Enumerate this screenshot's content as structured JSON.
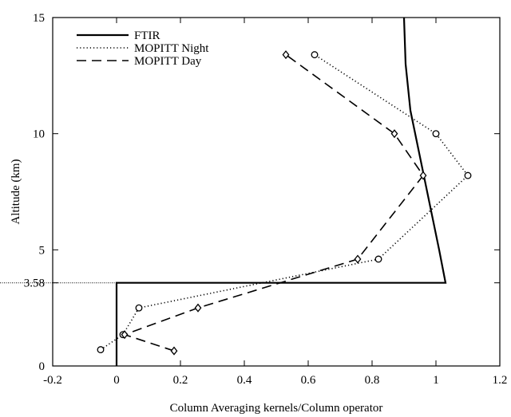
{
  "chart_data": {
    "type": "line",
    "xlabel": "Column Averaging kernels/Column operator",
    "ylabel": "Altitude (km)",
    "xlim": [
      -0.2,
      1.2
    ],
    "ylim": [
      0,
      15
    ],
    "x_ticks": [
      "-0.2",
      "0",
      "0.2",
      "0.4",
      "0.6",
      "0.8",
      "1",
      "1.2"
    ],
    "x_tick_values": [
      -0.2,
      0,
      0.2,
      0.4,
      0.6,
      0.8,
      1.0,
      1.2
    ],
    "y_ticks": [
      "0",
      "3.58",
      "5",
      "10",
      "15"
    ],
    "y_tick_values": [
      0,
      3.58,
      5,
      10,
      15
    ],
    "reference_line": {
      "y": 3.58
    },
    "legend_position": "top-left",
    "series": [
      {
        "name": "FTIR",
        "style": "solid",
        "marker": "none",
        "points": [
          [
            0.0,
            0.0
          ],
          [
            0.0,
            3.58
          ],
          [
            1.03,
            3.58
          ],
          [
            1.01,
            5.0
          ],
          [
            0.98,
            7.0
          ],
          [
            0.95,
            9.0
          ],
          [
            0.92,
            11.0
          ],
          [
            0.905,
            13.0
          ],
          [
            0.9,
            15.0
          ]
        ]
      },
      {
        "name": "MOPITT Night",
        "style": "dotted",
        "marker": "circle",
        "points": [
          [
            -0.05,
            0.7
          ],
          [
            0.02,
            1.35
          ],
          [
            0.07,
            2.5
          ],
          [
            0.82,
            4.6
          ],
          [
            1.1,
            8.2
          ],
          [
            1.0,
            10.0
          ],
          [
            0.62,
            13.4
          ]
        ]
      },
      {
        "name": "MOPITT Day",
        "style": "dashed",
        "marker": "diamond",
        "points": [
          [
            0.18,
            0.65
          ],
          [
            0.025,
            1.35
          ],
          [
            0.255,
            2.5
          ],
          [
            0.755,
            4.6
          ],
          [
            0.96,
            8.2
          ],
          [
            0.87,
            10.0
          ],
          [
            0.53,
            13.4
          ]
        ]
      }
    ]
  }
}
